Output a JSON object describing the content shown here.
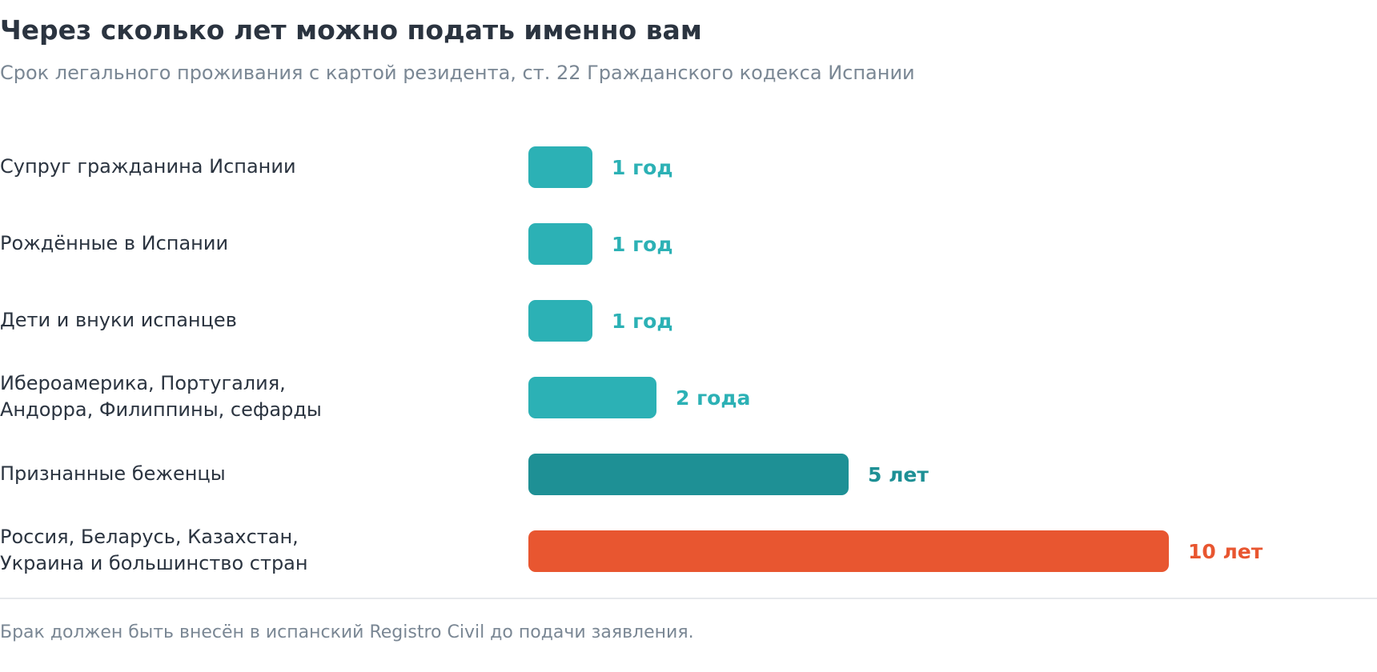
{
  "title": "Через сколько лет можно подать именно вам",
  "subtitle": "Срок легального проживания с картой резидента, ст. 22 Гражданского кодекса Испании",
  "footnote": "Брак должен быть внесён в испанский Registro Civil до подачи заявления.",
  "chart_data": {
    "type": "bar",
    "orientation": "horizontal",
    "categories": [
      "Супруг гражданина Испании",
      "Рождённые в Испании",
      "Дети и внуки испанцев",
      "Ибероамерика, Португалия,\nАндорра, Филиппины, сефарды",
      "Признанные беженцы",
      "Россия, Беларусь, Казахстан,\nУкраина и большинство стран"
    ],
    "values": [
      1,
      1,
      1,
      2,
      5,
      10
    ],
    "value_labels": [
      "1 год",
      "1 год",
      "1 год",
      "2 года",
      "5 лет",
      "10 лет"
    ],
    "colors": [
      "#2cb1b5",
      "#2cb1b5",
      "#2cb1b5",
      "#2cb1b5",
      "#1e9095",
      "#e85630"
    ],
    "label_colors": [
      "#2cb1b5",
      "#2cb1b5",
      "#2cb1b5",
      "#2cb1b5",
      "#1e9095",
      "#e85630"
    ],
    "xlim": [
      0,
      10
    ],
    "grid": false,
    "legend": "none"
  }
}
